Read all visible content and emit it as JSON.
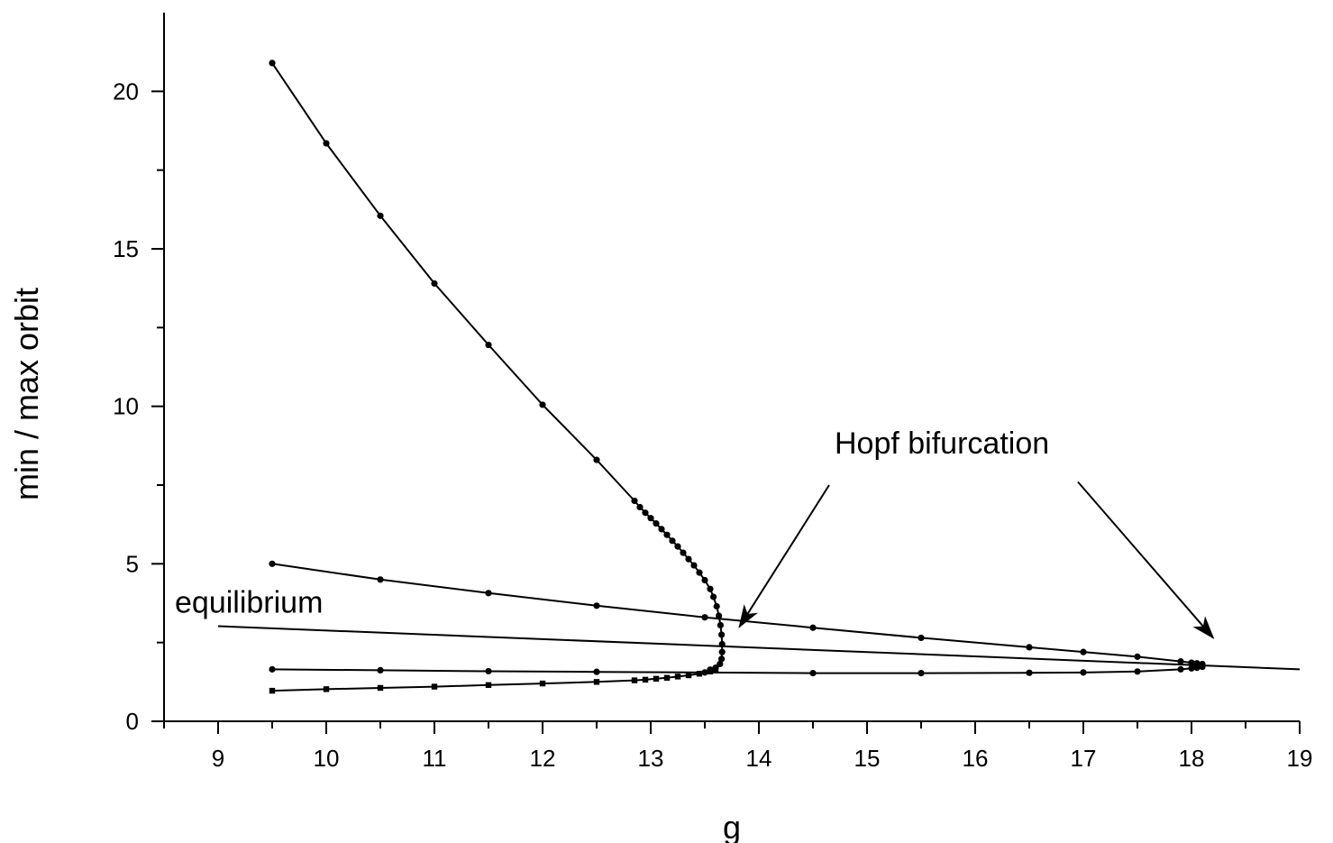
{
  "chart_data": {
    "type": "line",
    "xlabel": "g",
    "ylabel": "min / max orbit",
    "xlim": [
      8.5,
      19
    ],
    "ylim": [
      0,
      22.5
    ],
    "x_ticks": [
      9,
      10,
      11,
      12,
      13,
      14,
      15,
      16,
      17,
      18,
      19
    ],
    "y_ticks": [
      0,
      5,
      10,
      15,
      20
    ],
    "x_ticks_minor": [
      8.5,
      9.5,
      10.5,
      11.5,
      12.5,
      13.5,
      14.5,
      15.5,
      16.5,
      17.5,
      18.5
    ],
    "y_ticks_minor": [
      2.5,
      7.5,
      12.5,
      17.5
    ],
    "grid": false,
    "axis_color": "#000000",
    "series": [
      {
        "curve": "left-max-orbit",
        "marker": "circle",
        "points": [
          [
            9.5,
            20.9
          ],
          [
            10.0,
            18.35
          ],
          [
            10.5,
            16.05
          ],
          [
            11.0,
            13.9
          ],
          [
            11.5,
            11.95
          ],
          [
            12.0,
            10.05
          ],
          [
            12.5,
            8.3
          ],
          [
            12.85,
            7.0
          ],
          [
            12.9,
            6.8
          ],
          [
            12.95,
            6.62
          ],
          [
            13.0,
            6.45
          ],
          [
            13.05,
            6.28
          ],
          [
            13.1,
            6.1
          ],
          [
            13.15,
            5.92
          ],
          [
            13.2,
            5.73
          ],
          [
            13.25,
            5.55
          ],
          [
            13.3,
            5.35
          ],
          [
            13.35,
            5.15
          ],
          [
            13.4,
            4.95
          ],
          [
            13.45,
            4.72
          ],
          [
            13.5,
            4.48
          ],
          [
            13.55,
            4.2
          ],
          [
            13.58,
            3.95
          ],
          [
            13.61,
            3.65
          ],
          [
            13.63,
            3.35
          ],
          [
            13.645,
            3.05
          ],
          [
            13.655,
            2.75
          ],
          [
            13.66,
            2.45
          ],
          [
            13.66,
            2.2
          ],
          [
            13.655,
            1.98
          ],
          [
            13.64,
            1.82
          ],
          [
            13.6,
            1.7
          ],
          [
            13.55,
            1.64
          ]
        ]
      },
      {
        "curve": "left-min-orbit",
        "marker": "square",
        "points": [
          [
            9.5,
            0.97
          ],
          [
            10.0,
            1.02
          ],
          [
            10.5,
            1.06
          ],
          [
            11.0,
            1.1
          ],
          [
            11.5,
            1.15
          ],
          [
            12.0,
            1.2
          ],
          [
            12.5,
            1.25
          ],
          [
            12.85,
            1.3
          ],
          [
            12.95,
            1.32
          ],
          [
            13.05,
            1.35
          ],
          [
            13.15,
            1.38
          ],
          [
            13.25,
            1.42
          ],
          [
            13.35,
            1.46
          ],
          [
            13.45,
            1.51
          ],
          [
            13.55,
            1.58
          ],
          [
            13.6,
            1.64
          ]
        ]
      },
      {
        "curve": "right-upper-orbit",
        "marker": "circle",
        "points": [
          [
            9.5,
            5.0
          ],
          [
            10.5,
            4.5
          ],
          [
            11.5,
            4.07
          ],
          [
            12.5,
            3.67
          ],
          [
            13.5,
            3.3
          ],
          [
            14.5,
            2.97
          ],
          [
            15.5,
            2.65
          ],
          [
            16.5,
            2.35
          ],
          [
            17.0,
            2.2
          ],
          [
            17.5,
            2.05
          ],
          [
            17.9,
            1.9
          ],
          [
            18.0,
            1.86
          ],
          [
            18.05,
            1.84
          ],
          [
            18.1,
            1.82
          ]
        ]
      },
      {
        "curve": "right-lower-orbit",
        "marker": "circle",
        "points": [
          [
            9.5,
            1.65
          ],
          [
            10.5,
            1.62
          ],
          [
            11.5,
            1.59
          ],
          [
            12.5,
            1.57
          ],
          [
            13.5,
            1.55
          ],
          [
            14.5,
            1.53
          ],
          [
            15.5,
            1.53
          ],
          [
            16.5,
            1.54
          ],
          [
            17.0,
            1.55
          ],
          [
            17.5,
            1.58
          ],
          [
            17.9,
            1.65
          ],
          [
            18.0,
            1.68
          ],
          [
            18.05,
            1.7
          ],
          [
            18.1,
            1.73
          ]
        ]
      },
      {
        "curve": "equilibrium",
        "marker": "none",
        "points": [
          [
            9.0,
            3.02
          ],
          [
            19.0,
            1.65
          ]
        ]
      }
    ],
    "annotations": [
      {
        "text": "equilibrium",
        "anchor": [
          8.6,
          3.45
        ]
      },
      {
        "text": "Hopf bifurcation",
        "anchor": [
          14.7,
          8.5
        ]
      }
    ],
    "arrows": [
      {
        "from": [
          14.65,
          7.5
        ],
        "to": [
          13.82,
          3.0
        ]
      },
      {
        "from": [
          16.95,
          7.6
        ],
        "to": [
          18.2,
          2.65
        ]
      }
    ]
  }
}
